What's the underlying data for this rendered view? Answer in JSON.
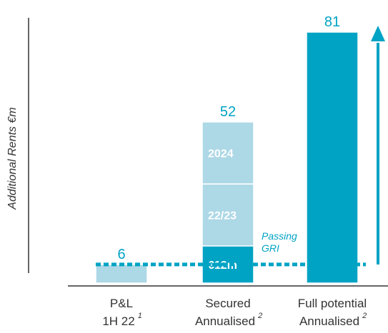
{
  "chart_data": {
    "type": "bar",
    "ylabel": "Additional Rents €m",
    "categories": [
      {
        "line1": "P&L",
        "line2": "1H 22",
        "footnote": "1"
      },
      {
        "line1": "Secured",
        "line2": "Annualised",
        "footnote": "2"
      },
      {
        "line1": "Full potential",
        "line2": "Annualised",
        "footnote": "2"
      }
    ],
    "totals": [
      "6",
      "52",
      "81"
    ],
    "series": [
      {
        "category_index": 0,
        "value": 6,
        "label": "",
        "color": "#add8e6"
      },
      {
        "category_index": 1,
        "value": 12,
        "label": "€12m",
        "color": "#00a3c4"
      },
      {
        "category_index": 1,
        "value": 20,
        "label": "22/23",
        "color": "#add8e6"
      },
      {
        "category_index": 1,
        "value": 20,
        "label": "2024",
        "color": "#add8e6"
      },
      {
        "category_index": 2,
        "value": 81,
        "label": "",
        "color": "#00a3c4"
      }
    ],
    "passing_gri": {
      "value": 6,
      "label_line1": "Passing",
      "label_line2": "GRI",
      "color": "#00a3c4"
    },
    "growth_arrow": true,
    "ylim": [
      0,
      81
    ],
    "grid": false,
    "colors": {
      "accent": "#00a3c4",
      "light": "#add8e6",
      "axis": "#333333",
      "label_text": "#ffffff"
    }
  }
}
